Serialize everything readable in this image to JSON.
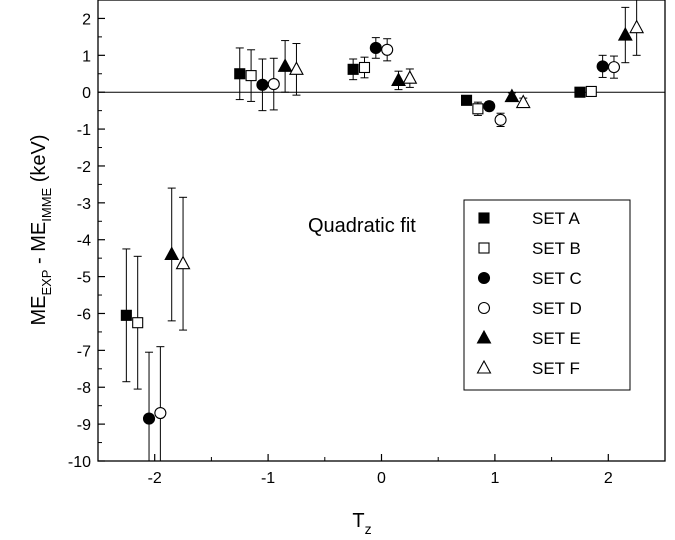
{
  "chart_data": {
    "type": "scatter",
    "title": "",
    "xlabel": {
      "main": "T",
      "sub": "z"
    },
    "ylabel": {
      "p1": "ME",
      "s1": "EXP",
      "p2": " - ME",
      "s2": "IMME",
      "p3": " (keV)"
    },
    "xlim": [
      -2.5,
      2.5
    ],
    "ylim": [
      -10,
      2.5
    ],
    "xticks": [
      -2,
      -1,
      0,
      1,
      2
    ],
    "yticks": [
      -10,
      -9,
      -8,
      -7,
      -6,
      -5,
      -4,
      -3,
      -2,
      -1,
      0,
      1,
      2
    ],
    "annotation": "Quadratic fit",
    "reference_line": 0,
    "legend_position": "lower-right",
    "series": [
      {
        "name": "SET A",
        "marker": "square-filled",
        "points": [
          {
            "x": -2.25,
            "y": -6.05,
            "err": 1.8
          },
          {
            "x": -1.25,
            "y": 0.5,
            "err": 0.7
          },
          {
            "x": -0.25,
            "y": 0.62,
            "err": 0.28
          },
          {
            "x": 0.75,
            "y": -0.22,
            "err": 0.1
          },
          {
            "x": 1.75,
            "y": 0.0,
            "err": 0.08
          }
        ]
      },
      {
        "name": "SET B",
        "marker": "square-open",
        "points": [
          {
            "x": -2.15,
            "y": -6.25,
            "err": 1.8
          },
          {
            "x": -1.15,
            "y": 0.45,
            "err": 0.7
          },
          {
            "x": -0.15,
            "y": 0.67,
            "err": 0.28
          },
          {
            "x": 0.85,
            "y": -0.45,
            "err": 0.18
          },
          {
            "x": 1.85,
            "y": 0.02,
            "err": 0.08
          }
        ]
      },
      {
        "name": "SET C",
        "marker": "circle-filled",
        "points": [
          {
            "x": -2.05,
            "y": -8.85,
            "err": 1.8
          },
          {
            "x": -1.05,
            "y": 0.2,
            "err": 0.7
          },
          {
            "x": -0.05,
            "y": 1.2,
            "err": 0.28
          },
          {
            "x": 0.95,
            "y": -0.38,
            "err": 0.12
          },
          {
            "x": 1.95,
            "y": 0.7,
            "err": 0.3
          }
        ]
      },
      {
        "name": "SET D",
        "marker": "circle-open",
        "points": [
          {
            "x": -1.95,
            "y": -8.7,
            "err": 1.8
          },
          {
            "x": -0.95,
            "y": 0.22,
            "err": 0.7
          },
          {
            "x": 0.05,
            "y": 1.15,
            "err": 0.3
          },
          {
            "x": 1.05,
            "y": -0.75,
            "err": 0.18
          },
          {
            "x": 2.05,
            "y": 0.68,
            "err": 0.3
          }
        ]
      },
      {
        "name": "SET E",
        "marker": "triangle-filled",
        "points": [
          {
            "x": -1.85,
            "y": -4.4,
            "err": 1.8
          },
          {
            "x": -0.85,
            "y": 0.7,
            "err": 0.7
          },
          {
            "x": 0.15,
            "y": 0.32,
            "err": 0.25
          },
          {
            "x": 1.15,
            "y": -0.12,
            "err": 0.1
          },
          {
            "x": 2.15,
            "y": 1.55,
            "err": 0.75
          }
        ]
      },
      {
        "name": "SET F",
        "marker": "triangle-open",
        "points": [
          {
            "x": -1.75,
            "y": -4.65,
            "err": 1.8
          },
          {
            "x": -0.75,
            "y": 0.62,
            "err": 0.7
          },
          {
            "x": 0.25,
            "y": 0.38,
            "err": 0.25
          },
          {
            "x": 1.25,
            "y": -0.28,
            "err": 0.12
          },
          {
            "x": 2.25,
            "y": 1.75,
            "err": 0.75
          }
        ]
      }
    ]
  }
}
